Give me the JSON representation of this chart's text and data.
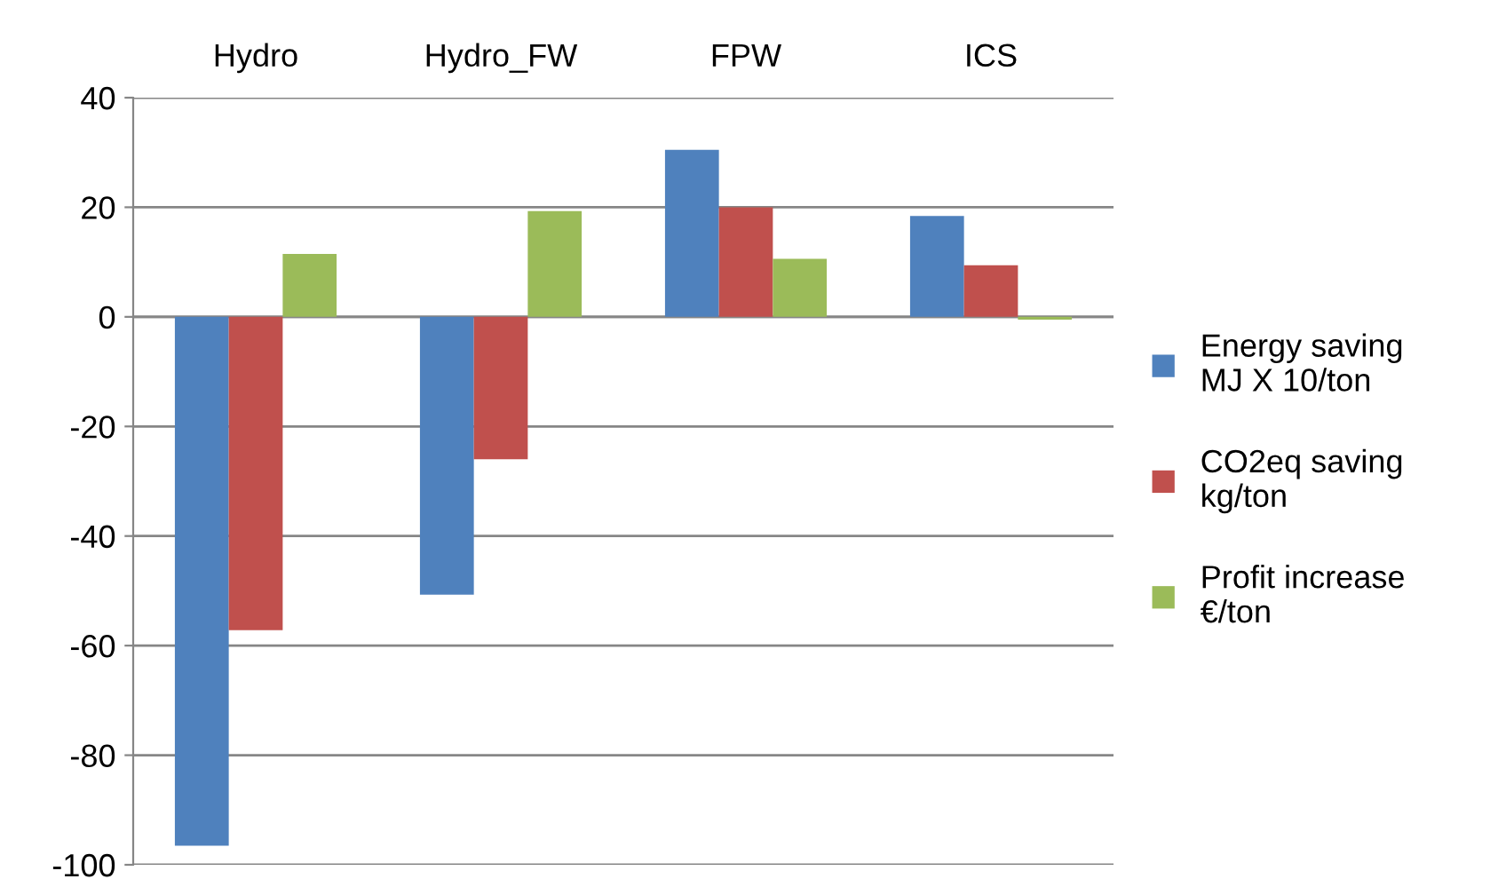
{
  "chart_data": {
    "type": "bar",
    "categories": [
      "Hydro",
      "Hydro_FW",
      "FPW",
      "ICS"
    ],
    "series": [
      {
        "name": "Energy saving\nMJ X 10/ton",
        "color": "#4f81bd",
        "values": [
          -96.5,
          -50.7,
          30.5,
          18.4
        ]
      },
      {
        "name": "CO2eq saving\nkg/ton",
        "color": "#c0504d",
        "values": [
          -57.2,
          -26,
          20,
          9.4
        ]
      },
      {
        "name": "Profit increase\n€/ton",
        "color": "#9bbb59",
        "values": [
          11.5,
          19.3,
          10.6,
          -0.5
        ]
      }
    ],
    "ylim": [
      -100,
      40
    ],
    "yticks": [
      -100,
      -80,
      -60,
      -40,
      -20,
      0,
      20,
      40
    ],
    "grid": "y",
    "legend": "right"
  }
}
